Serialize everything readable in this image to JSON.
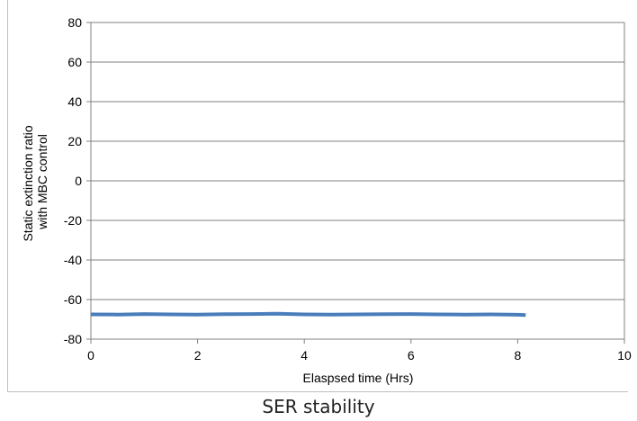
{
  "caption": "SER stability",
  "chart_data": {
    "type": "line",
    "xlabel": "Elaspsed time (Hrs)",
    "ylabel_line1": "Static extinction ratio",
    "ylabel_line2": "with MBC control",
    "xlim": [
      0,
      10
    ],
    "ylim": [
      -80,
      80
    ],
    "xticks": [
      0,
      2,
      4,
      6,
      8,
      10
    ],
    "yticks": [
      -80,
      -60,
      -40,
      -20,
      0,
      20,
      40,
      60,
      80
    ],
    "grid": "horizontal",
    "series": [
      {
        "color": "#4a7ebb",
        "x": [
          0,
          0.5,
          1,
          1.5,
          2,
          2.5,
          3,
          3.5,
          4,
          4.5,
          5,
          5.5,
          6,
          6.5,
          7,
          7.5,
          8,
          8.15
        ],
        "y": [
          -67.5,
          -67.6,
          -67.3,
          -67.5,
          -67.6,
          -67.4,
          -67.3,
          -67.2,
          -67.5,
          -67.6,
          -67.5,
          -67.4,
          -67.3,
          -67.5,
          -67.6,
          -67.5,
          -67.7,
          -67.8
        ]
      }
    ]
  }
}
